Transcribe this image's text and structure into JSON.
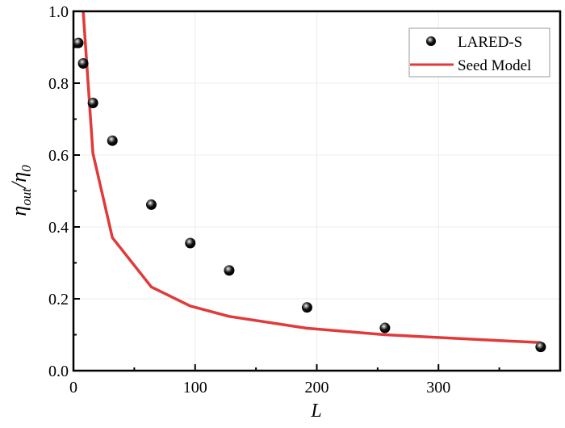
{
  "chart_data": {
    "type": "scatter+line",
    "title": "",
    "xlabel": "L",
    "ylabel_parts": {
      "eta": "η",
      "out": "out",
      "slash": "/η",
      "zero": "0"
    },
    "xlim": [
      0,
      400
    ],
    "ylim": [
      0,
      1.0
    ],
    "xticks": [
      "0",
      "100",
      "200",
      "300"
    ],
    "xtick_values": [
      0,
      100,
      200,
      300
    ],
    "yticks": [
      "0.0",
      "0.2",
      "0.4",
      "0.6",
      "0.8",
      "1.0"
    ],
    "ytick_values": [
      0,
      0.2,
      0.4,
      0.6,
      0.8,
      1.0
    ],
    "grid": true,
    "legend_position": "top-right",
    "series": [
      {
        "name": "LARED-S",
        "kind": "scatter",
        "color": "#000000",
        "x": [
          4,
          8,
          16,
          32,
          64,
          96,
          128,
          192,
          256,
          384
        ],
        "y": [
          0.912,
          0.855,
          0.745,
          0.64,
          0.462,
          0.355,
          0.279,
          0.176,
          0.119,
          0.066
        ]
      },
      {
        "name": "Seed Model",
        "kind": "line",
        "color": "#e03a3a",
        "x": [
          8,
          16,
          32,
          64,
          96,
          128,
          192,
          256,
          384
        ],
        "y": [
          1.0,
          0.605,
          0.37,
          0.233,
          0.18,
          0.151,
          0.118,
          0.1,
          0.078
        ]
      }
    ]
  }
}
